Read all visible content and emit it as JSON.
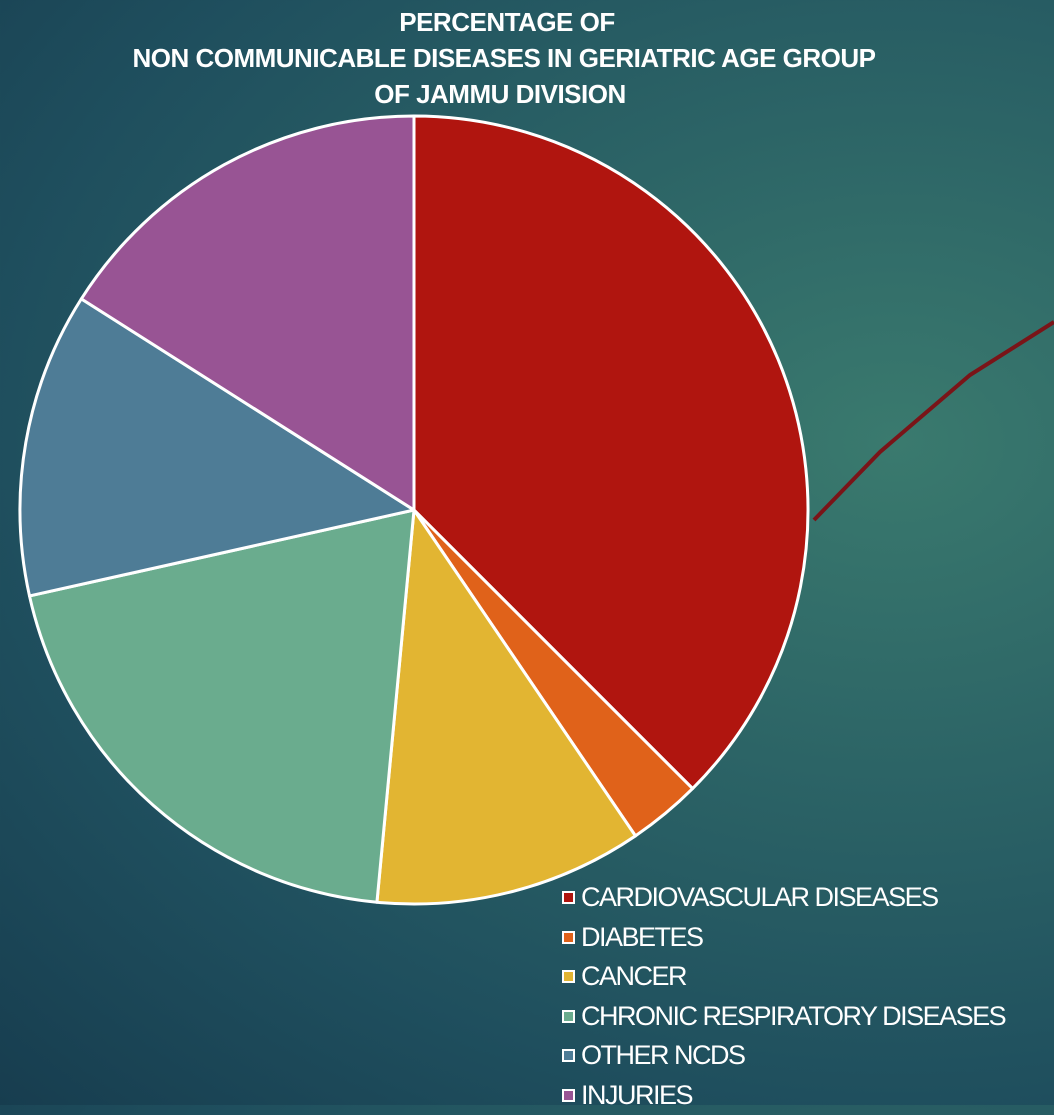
{
  "chart_data": {
    "type": "pie",
    "title": [
      "PERCENTAGE OF",
      "NON COMMUNICABLE DISEASES IN GERIATRIC AGE GROUP",
      "OF JAMMU DIVISION"
    ],
    "categories": [
      "CARDIOVASCULAR DISEASES",
      "DIABETES",
      "CANCER",
      "CHRONIC RESPIRATORY DISEASES",
      "OTHER NCDS",
      "INJURIES"
    ],
    "values": [
      37.5,
      3.0,
      11.0,
      20.0,
      12.5,
      16.0
    ],
    "colors": [
      "#b0150f",
      "#e0621a",
      "#e2b532",
      "#6aac8e",
      "#4e7c96",
      "#985494"
    ],
    "start_angle_deg": 0,
    "direction": "clockwise",
    "legend_position": "bottom-right",
    "background_line_color": "#7a1418"
  }
}
